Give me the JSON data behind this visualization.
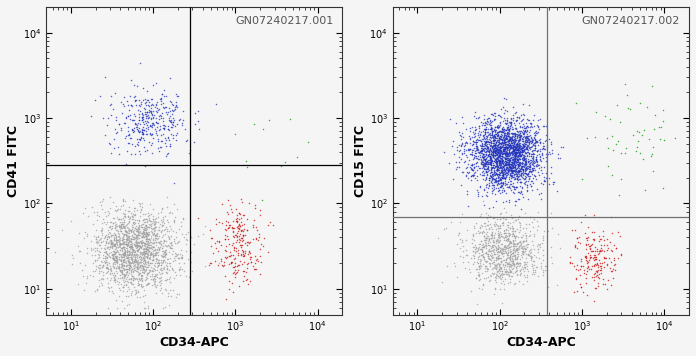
{
  "plot1": {
    "label": "GN07240217.001",
    "xlabel": "CD34-APC",
    "ylabel": "CD41 FITC",
    "xlim": [
      5,
      20000
    ],
    "ylim": [
      5,
      20000
    ],
    "gate_x": 280,
    "gate_y": 280,
    "populations": {
      "gray": {
        "x_mean": 60,
        "x_std": 0.6,
        "y_mean": 28,
        "y_std": 0.55,
        "n": 1800,
        "color": "#a0a0a0"
      },
      "blue": {
        "x_mean": 90,
        "x_std": 0.55,
        "y_mean": 900,
        "y_std": 0.45,
        "n": 380,
        "color": "#2233bb"
      },
      "red": {
        "x_mean": 1100,
        "x_std": 0.38,
        "y_mean": 35,
        "y_std": 0.55,
        "n": 250,
        "color": "#cc1111"
      },
      "green": {
        "x_mean": 2500,
        "x_std": 0.55,
        "y_mean": 500,
        "y_std": 0.6,
        "n": 12,
        "color": "#009900"
      }
    }
  },
  "plot2": {
    "label": "GN07240217.002",
    "xlabel": "CD34-APC",
    "ylabel": "CD15 FITC",
    "xlim": [
      5,
      20000
    ],
    "ylim": [
      5,
      20000
    ],
    "gate_x": 380,
    "gate_y": 70,
    "populations": {
      "gray": {
        "x_mean": 110,
        "x_std": 0.55,
        "y_mean": 28,
        "y_std": 0.45,
        "n": 900,
        "color": "#a0a0a0"
      },
      "blue": {
        "x_mean": 120,
        "x_std": 0.5,
        "y_mean": 380,
        "y_std": 0.48,
        "n": 2500,
        "color": "#2233bb"
      },
      "red": {
        "x_mean": 1400,
        "x_std": 0.32,
        "y_mean": 22,
        "y_std": 0.42,
        "n": 200,
        "color": "#cc1111"
      },
      "green": {
        "x_mean": 4000,
        "x_std": 0.65,
        "y_mean": 600,
        "y_std": 0.65,
        "n": 55,
        "color": "#009900"
      }
    }
  },
  "background_color": "#f5f5f5",
  "gate_line_color1": "#000000",
  "gate_line_color2": "#707070",
  "label_fontsize": 8,
  "axis_label_fontsize": 9,
  "marker_size": 1.2,
  "marker_alpha": 0.75
}
